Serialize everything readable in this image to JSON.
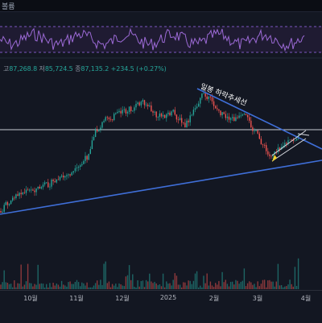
{
  "topbar": {
    "label": "볼륨"
  },
  "ohlc": {
    "open_label": "고",
    "open_value": "87,268.8",
    "low_label": "저",
    "low_value": "85,724.5",
    "close_label": "종",
    "close_value": "87,135.2",
    "change": "+234.5 (+0.27%)"
  },
  "annotation": {
    "text": "일봉 하락추세선"
  },
  "xaxis": {
    "labels": [
      "10월",
      "11월",
      "12월",
      "2025",
      "2월",
      "3월",
      "4월"
    ]
  },
  "colors": {
    "background": "#131722",
    "rsi_line": "#9c6ad6",
    "rsi_band": "#7e57c2",
    "up_candle": "#26a69a",
    "down_candle": "#ef5350",
    "trendline": "#3f6fd9",
    "horizontal_line": "#c9ccd4",
    "wedge_line": "#d9dce3",
    "yellow_mark": "#f5d02b"
  },
  "icons": {}
}
